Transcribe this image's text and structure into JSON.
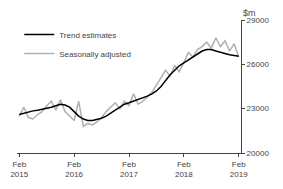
{
  "chart_data": {
    "type": "line",
    "ylabel": "$m",
    "categories": [
      "Feb\n2015",
      null,
      null,
      null,
      null,
      null,
      null,
      null,
      null,
      null,
      null,
      null,
      "Feb\n2016",
      null,
      null,
      null,
      null,
      null,
      null,
      null,
      null,
      null,
      null,
      null,
      "Feb\n2017",
      null,
      null,
      null,
      null,
      null,
      null,
      null,
      null,
      null,
      null,
      null,
      "Feb\n2018",
      null,
      null,
      null,
      null,
      null,
      null,
      null,
      null,
      null,
      null,
      null,
      "Feb\n2019"
    ],
    "series": [
      {
        "name": "Seasonally adjusted",
        "color": "#b0b0b0",
        "values": [
          22500,
          23100,
          22400,
          22300,
          22600,
          22800,
          23200,
          23500,
          22900,
          23600,
          22800,
          22500,
          22200,
          23500,
          21800,
          22000,
          21900,
          22100,
          22400,
          22800,
          23100,
          23400,
          23000,
          23500,
          23200,
          24000,
          23300,
          23500,
          23800,
          24100,
          24600,
          25100,
          25600,
          25200,
          25900,
          25500,
          26200,
          26800,
          26500,
          27000,
          27200,
          27500,
          27100,
          27800,
          27200,
          27600,
          26900,
          27400,
          26500
        ]
      },
      {
        "name": "Trend estimates",
        "color": "#000000",
        "values": [
          22600,
          22700,
          22780,
          22850,
          22900,
          22950,
          23000,
          23100,
          23200,
          23300,
          23250,
          23100,
          22800,
          22500,
          22300,
          22200,
          22200,
          22250,
          22350,
          22500,
          22700,
          22900,
          23100,
          23300,
          23400,
          23500,
          23600,
          23700,
          23850,
          24000,
          24200,
          24500,
          24900,
          25300,
          25600,
          25900,
          26100,
          26300,
          26500,
          26700,
          26900,
          27000,
          27000,
          26900,
          26800,
          26700,
          26650,
          26600,
          26550
        ]
      }
    ],
    "ylim": [
      20000,
      29000
    ],
    "yticks": [
      20000,
      23000,
      26000,
      29000
    ],
    "grid": false,
    "legend": "upper left"
  }
}
